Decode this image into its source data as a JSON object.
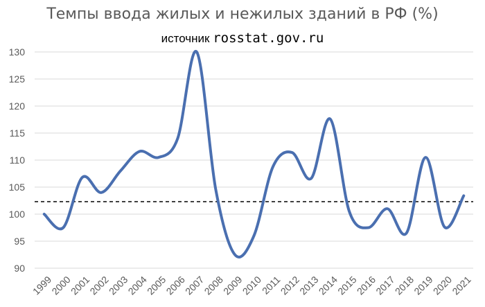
{
  "chart_data": {
    "type": "line",
    "title": "Темпы ввода жилых и нежилых зданий в РФ (%)",
    "subtitle_prefix": "источник",
    "subtitle_source": "rosstat.gov.ru",
    "categories": [
      "1999",
      "2000",
      "2001",
      "2002",
      "2003",
      "2004",
      "2005",
      "2006",
      "2007",
      "2008",
      "2009",
      "2010",
      "2011",
      "2012",
      "2013",
      "2014",
      "2015",
      "2016",
      "2017",
      "2018",
      "2019",
      "2020",
      "2021"
    ],
    "series": [
      {
        "values": [
          100.0,
          97.5,
          106.8,
          104.0,
          108.0,
          111.6,
          110.5,
          114.0,
          130.0,
          104.5,
          92.5,
          96.0,
          108.8,
          111.4,
          106.6,
          117.6,
          100.5,
          97.5,
          101.0,
          96.5,
          110.5,
          97.6,
          103.4
        ],
        "color": "#4A6FB0"
      }
    ],
    "reference_line": {
      "value": 102.3,
      "style": "dashed",
      "color": "#000000"
    },
    "ylim": [
      90,
      130
    ],
    "yticks": [
      90,
      95,
      100,
      105,
      110,
      115,
      120,
      125,
      130
    ],
    "grid": true,
    "xlabel": "",
    "ylabel": ""
  }
}
